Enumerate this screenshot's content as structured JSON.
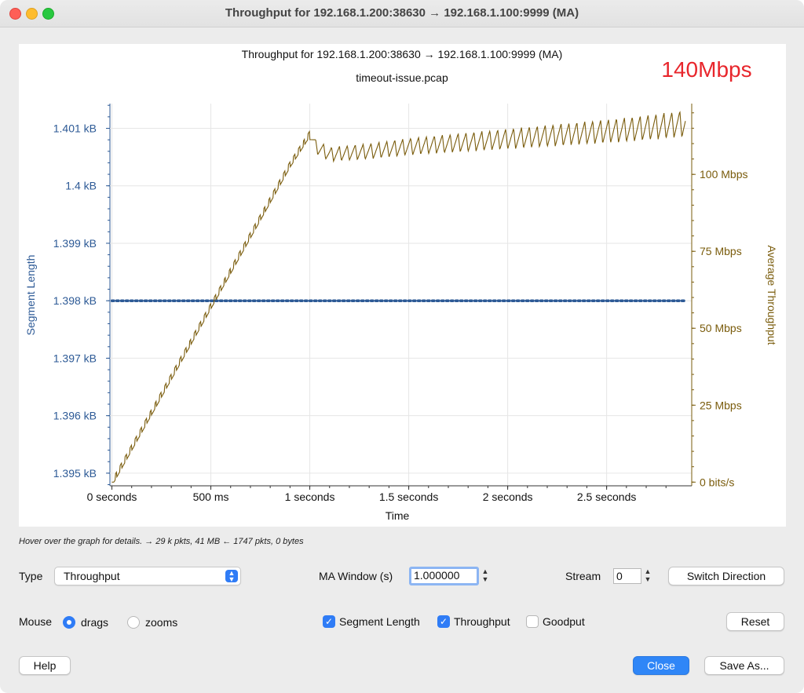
{
  "window": {
    "title": "Throughput for 192.168.1.200:38630 → 192.168.1.100:9999 (MA)"
  },
  "graph": {
    "title": "Throughput for 192.168.1.200:38630 → 192.168.1.100:9999 (MA)",
    "subtitle": "timeout-issue.pcap",
    "annotation": "140Mbps",
    "annotation_color": "#e8262c",
    "xlabel": "Time",
    "ylabel_left": "Segment Length",
    "ylabel_right": "Average Throughput",
    "left_color": "#2d5a96",
    "right_color": "#7a5c0c"
  },
  "chart_data": {
    "type": "line",
    "title": "Throughput for 192.168.1.200:38630 → 192.168.1.100:9999 (MA)",
    "subtitle": "timeout-issue.pcap",
    "xlabel": "Time",
    "x_ticks": [
      {
        "v": 0,
        "label": "0 seconds"
      },
      {
        "v": 0.5,
        "label": "500 ms"
      },
      {
        "v": 1.0,
        "label": "1 seconds"
      },
      {
        "v": 1.5,
        "label": "1.5 seconds"
      },
      {
        "v": 2.0,
        "label": "2 seconds"
      },
      {
        "v": 2.5,
        "label": "2.5 seconds"
      }
    ],
    "xlim": [
      -0.01,
      2.93
    ],
    "y_left": {
      "label": "Segment Length",
      "ylim": [
        1.39478,
        1.40143
      ],
      "ticks": [
        {
          "v": 1.395,
          "label": "1.395 kB"
        },
        {
          "v": 1.396,
          "label": "1.396 kB"
        },
        {
          "v": 1.397,
          "label": "1.397 kB"
        },
        {
          "v": 1.398,
          "label": "1.398 kB"
        },
        {
          "v": 1.399,
          "label": "1.399 kB"
        },
        {
          "v": 1.4,
          "label": "1.4 kB"
        },
        {
          "v": 1.401,
          "label": "1.401 kB"
        }
      ]
    },
    "y_right": {
      "label": "Average Throughput",
      "ylim": [
        -1.2,
        123
      ],
      "ticks": [
        {
          "v": 0,
          "label": "0 bits/s"
        },
        {
          "v": 25,
          "label": "25 Mbps"
        },
        {
          "v": 50,
          "label": "50 Mbps"
        },
        {
          "v": 75,
          "label": "75 Mbps"
        },
        {
          "v": 100,
          "label": "100 Mbps"
        }
      ]
    },
    "series": [
      {
        "name": "Segment Length",
        "axis": "left",
        "style": "dotted",
        "color": "#2d5a96",
        "points": [
          [
            0,
            1.398
          ],
          [
            2.9,
            1.398
          ]
        ]
      },
      {
        "name": "Throughput",
        "axis": "right",
        "style": "solid",
        "color": "#7a5c0c",
        "points": [
          [
            0,
            0
          ],
          [
            0.1,
            11.5
          ],
          [
            0.2,
            23
          ],
          [
            0.3,
            34.5
          ],
          [
            0.4,
            46
          ],
          [
            0.5,
            57.5
          ],
          [
            0.6,
            69
          ],
          [
            0.7,
            80.5
          ],
          [
            0.8,
            92
          ],
          [
            0.9,
            103.5
          ],
          [
            1.0,
            113.5
          ],
          [
            1.03,
            109
          ],
          [
            1.1,
            106.5
          ],
          [
            1.3,
            107.5
          ],
          [
            1.5,
            109
          ],
          [
            1.7,
            110
          ],
          [
            2.0,
            111.5
          ],
          [
            2.3,
            113
          ],
          [
            2.6,
            114.5
          ],
          [
            2.9,
            116.5
          ]
        ]
      }
    ]
  },
  "info": {
    "text": "Hover over the graph for details. → 29 k pkts, 41 MB ← 1747 pkts, 0 bytes"
  },
  "controls": {
    "type_label": "Type",
    "type_value": "Throughput",
    "ma_label": "MA Window (s)",
    "ma_value": "1.000000",
    "stream_label": "Stream",
    "stream_value": "0",
    "switch_direction": "Switch Direction",
    "mouse_label": "Mouse",
    "radio_drags": "drags",
    "radio_zooms": "zooms",
    "check_segment_length": "Segment Length",
    "check_throughput": "Throughput",
    "check_goodput": "Goodput",
    "reset": "Reset",
    "help": "Help",
    "close": "Close",
    "save_as": "Save As..."
  }
}
